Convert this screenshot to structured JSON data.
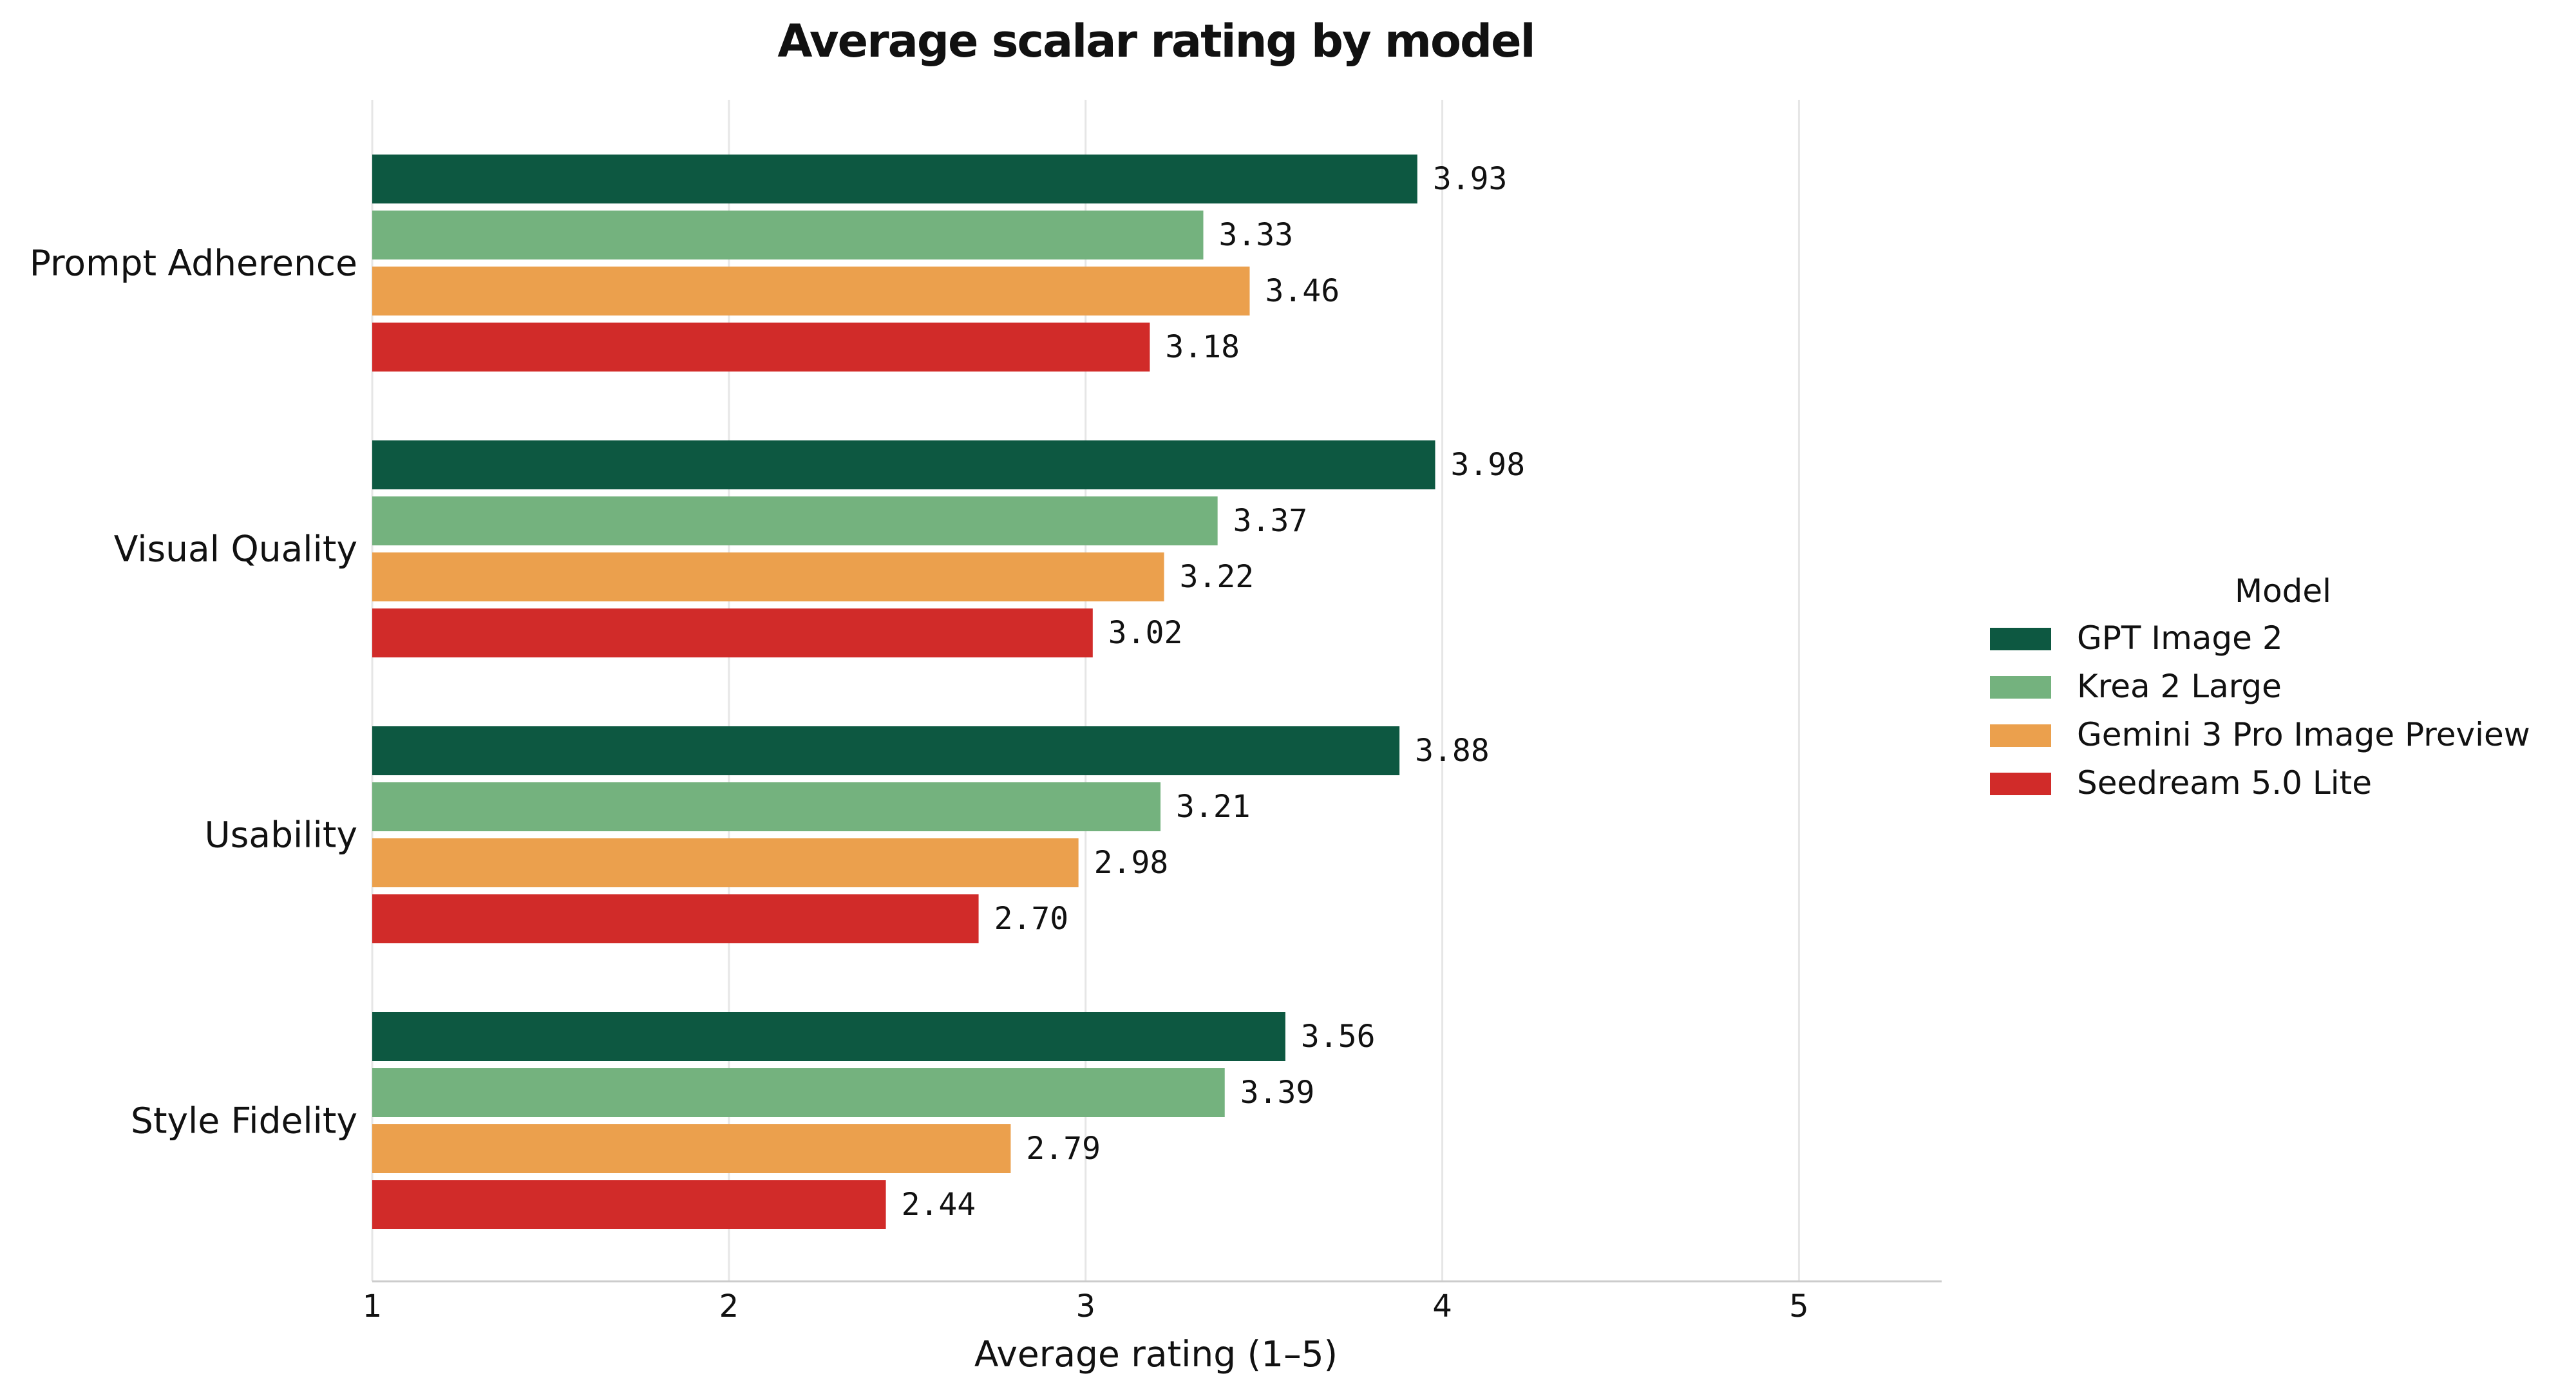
{
  "chart_data": {
    "type": "bar",
    "orientation": "horizontal",
    "title": "Average scalar rating by model",
    "xlabel": "Average rating (1–5)",
    "ylabel": "",
    "xlim": [
      1,
      5.4
    ],
    "xticks": [
      "1",
      "2",
      "3",
      "4",
      "5"
    ],
    "grid": "vertical",
    "legend_title": "Model",
    "legend_position": "right",
    "categories": [
      "Prompt Adherence",
      "Visual Quality",
      "Usability",
      "Style Fidelity"
    ],
    "series": [
      {
        "name": "GPT Image 2",
        "color": "#0d5841",
        "values": [
          3.93,
          3.98,
          3.88,
          3.56
        ],
        "labels": [
          "3.93",
          "3.98",
          "3.88",
          "3.56"
        ]
      },
      {
        "name": "Krea 2 Large",
        "color": "#74b27e",
        "values": [
          3.33,
          3.37,
          3.21,
          3.39
        ],
        "labels": [
          "3.33",
          "3.37",
          "3.21",
          "3.39"
        ]
      },
      {
        "name": "Gemini 3 Pro Image Preview",
        "color": "#eba04d",
        "values": [
          3.46,
          3.22,
          2.98,
          2.79
        ],
        "labels": [
          "3.46",
          "3.22",
          "2.98",
          "2.79"
        ]
      },
      {
        "name": "Seedream 5.0 Lite",
        "color": "#d12b29",
        "values": [
          3.18,
          3.02,
          2.7,
          2.44
        ],
        "labels": [
          "3.18",
          "3.02",
          "2.70",
          "2.44"
        ]
      }
    ]
  }
}
